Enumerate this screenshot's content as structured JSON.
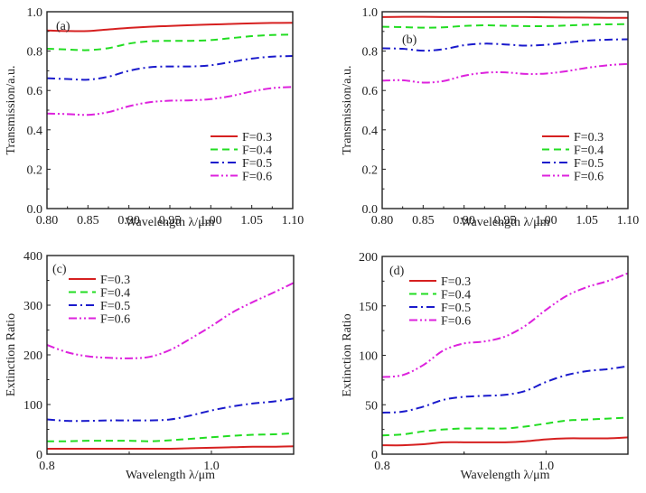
{
  "series_styles": [
    {
      "name": "F=0.3",
      "color": "#d62020",
      "dash": "solid"
    },
    {
      "name": "F=0.4",
      "color": "#22dd22",
      "dash": "dash"
    },
    {
      "name": "F=0.5",
      "color": "#1a1acc",
      "dash": "dashdot"
    },
    {
      "name": "F=0.6",
      "color": "#dd22dd",
      "dash": "dashdotdot"
    }
  ],
  "chart_data": [
    {
      "panel": "(a)",
      "type": "line",
      "xlabel": "Wavelength λ/μm",
      "ylabel": "Transmission/a.u.",
      "xlim": [
        0.8,
        1.1
      ],
      "ylim": [
        0.0,
        1.0
      ],
      "xticks": [
        0.8,
        0.85,
        0.9,
        0.95,
        1.0,
        1.05,
        1.1
      ],
      "xtick_labels": [
        "0.80",
        "0.85",
        "0.90",
        "0.95",
        "1.00",
        "1.05",
        "1.10"
      ],
      "yticks": [
        0.0,
        0.2,
        0.4,
        0.6,
        0.8,
        1.0
      ],
      "ytick_labels": [
        "0.0",
        "0.2",
        "0.4",
        "0.6",
        "0.8",
        "1.0"
      ],
      "legend_position": "lower-right",
      "x": [
        0.8,
        0.825,
        0.85,
        0.875,
        0.9,
        0.925,
        0.95,
        0.975,
        1.0,
        1.025,
        1.05,
        1.075,
        1.1
      ],
      "series": [
        {
          "name": "F=0.3",
          "values": [
            0.905,
            0.902,
            0.902,
            0.91,
            0.918,
            0.924,
            0.928,
            0.932,
            0.935,
            0.938,
            0.941,
            0.943,
            0.944
          ]
        },
        {
          "name": "F=0.4",
          "values": [
            0.812,
            0.808,
            0.805,
            0.815,
            0.838,
            0.85,
            0.852,
            0.852,
            0.856,
            0.866,
            0.876,
            0.882,
            0.884
          ]
        },
        {
          "name": "F=0.5",
          "values": [
            0.662,
            0.658,
            0.655,
            0.67,
            0.7,
            0.718,
            0.722,
            0.722,
            0.728,
            0.745,
            0.762,
            0.772,
            0.775
          ]
        },
        {
          "name": "F=0.6",
          "values": [
            0.483,
            0.48,
            0.476,
            0.49,
            0.52,
            0.54,
            0.548,
            0.55,
            0.556,
            0.572,
            0.595,
            0.612,
            0.618
          ]
        }
      ]
    },
    {
      "panel": "(b)",
      "type": "line",
      "xlabel": "Wavelength λ/μm",
      "ylabel": "Transmission/a.u.",
      "xlim": [
        0.8,
        1.1
      ],
      "ylim": [
        0.0,
        1.0
      ],
      "xticks": [
        0.8,
        0.85,
        0.9,
        0.95,
        1.0,
        1.05,
        1.1
      ],
      "xtick_labels": [
        "0.80",
        "0.85",
        "0.90",
        "0.95",
        "1.00",
        "1.05",
        "1.10"
      ],
      "yticks": [
        0.0,
        0.2,
        0.4,
        0.6,
        0.8,
        1.0
      ],
      "ytick_labels": [
        "0.0",
        "0.2",
        "0.4",
        "0.6",
        "0.8",
        "1.0"
      ],
      "legend_position": "lower-right",
      "x": [
        0.8,
        0.825,
        0.85,
        0.875,
        0.9,
        0.925,
        0.95,
        0.975,
        1.0,
        1.025,
        1.05,
        1.075,
        1.1
      ],
      "series": [
        {
          "name": "F=0.3",
          "values": [
            0.973,
            0.974,
            0.974,
            0.973,
            0.973,
            0.973,
            0.973,
            0.973,
            0.972,
            0.971,
            0.97,
            0.969,
            0.969
          ]
        },
        {
          "name": "F=0.4",
          "values": [
            0.924,
            0.922,
            0.919,
            0.921,
            0.928,
            0.931,
            0.929,
            0.927,
            0.927,
            0.93,
            0.934,
            0.936,
            0.937
          ]
        },
        {
          "name": "F=0.5",
          "values": [
            0.814,
            0.812,
            0.802,
            0.81,
            0.83,
            0.838,
            0.834,
            0.828,
            0.832,
            0.843,
            0.853,
            0.858,
            0.86
          ]
        },
        {
          "name": "F=0.6",
          "values": [
            0.65,
            0.652,
            0.64,
            0.648,
            0.675,
            0.69,
            0.692,
            0.684,
            0.686,
            0.698,
            0.715,
            0.728,
            0.735
          ]
        }
      ]
    },
    {
      "panel": "(c)",
      "type": "line",
      "xlabel": "Wavelength λ/μm",
      "ylabel": "Extinction Ratio",
      "xlim": [
        0.8,
        1.1
      ],
      "ylim": [
        0,
        400
      ],
      "xticks": [
        0.8,
        1.0
      ],
      "xtick_labels": [
        "0.8",
        "1.0"
      ],
      "xminor": [
        0.9
      ],
      "yticks": [
        0,
        100,
        200,
        300,
        400
      ],
      "ytick_labels": [
        "0",
        "100",
        "200",
        "300",
        "400"
      ],
      "legend_position": "top-left",
      "x": [
        0.8,
        0.825,
        0.85,
        0.875,
        0.9,
        0.925,
        0.95,
        0.975,
        1.0,
        1.025,
        1.05,
        1.075,
        1.1
      ],
      "series": [
        {
          "name": "F=0.3",
          "values": [
            11,
            11,
            11,
            11,
            11,
            11,
            11,
            12,
            13,
            14,
            15,
            15,
            16
          ]
        },
        {
          "name": "F=0.4",
          "values": [
            26,
            26,
            27,
            27,
            27,
            26,
            28,
            31,
            34,
            37,
            39,
            40,
            42
          ]
        },
        {
          "name": "F=0.5",
          "values": [
            70,
            67,
            67,
            68,
            68,
            68,
            70,
            78,
            88,
            96,
            102,
            106,
            112
          ]
        },
        {
          "name": "F=0.6",
          "values": [
            220,
            205,
            197,
            194,
            193,
            196,
            210,
            233,
            258,
            285,
            306,
            325,
            345
          ]
        }
      ]
    },
    {
      "panel": "(d)",
      "type": "line",
      "xlabel": "Wavelength λ/μm",
      "ylabel": "Extinction Ratio",
      "xlim": [
        0.8,
        1.1
      ],
      "ylim": [
        0,
        200
      ],
      "xticks": [
        0.8,
        1.0
      ],
      "xtick_labels": [
        "0.8",
        "1.0"
      ],
      "xminor": [
        0.9
      ],
      "yticks": [
        0,
        50,
        100,
        150,
        200
      ],
      "ytick_labels": [
        "0",
        "50",
        "100",
        "150",
        "200"
      ],
      "legend_position": "top-left",
      "x": [
        0.8,
        0.825,
        0.85,
        0.875,
        0.9,
        0.925,
        0.95,
        0.975,
        1.0,
        1.025,
        1.05,
        1.075,
        1.1
      ],
      "series": [
        {
          "name": "F=0.3",
          "values": [
            9,
            9,
            10,
            12,
            12,
            12,
            12,
            13,
            15,
            16,
            16,
            16,
            17
          ]
        },
        {
          "name": "F=0.4",
          "values": [
            19,
            20,
            23,
            25,
            26,
            26,
            26,
            28,
            31,
            34,
            35,
            36,
            37
          ]
        },
        {
          "name": "F=0.5",
          "values": [
            42,
            43,
            48,
            55,
            58,
            59,
            60,
            64,
            73,
            80,
            84,
            86,
            89
          ]
        },
        {
          "name": "F=0.6",
          "values": [
            78,
            80,
            90,
            105,
            112,
            114,
            119,
            130,
            146,
            160,
            169,
            175,
            183
          ]
        }
      ]
    }
  ]
}
